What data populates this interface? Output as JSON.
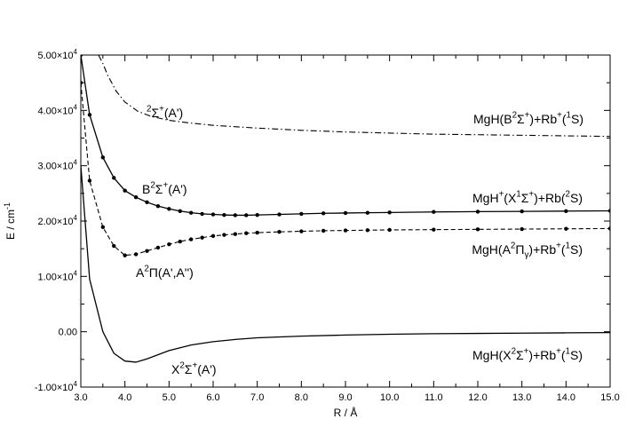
{
  "chart_data": {
    "type": "line",
    "xlabel": "R / Å",
    "ylabel": "E / cm",
    "ylabel_sup": "-1",
    "xlim": [
      3.0,
      15.0
    ],
    "ylim": [
      -10000,
      50000
    ],
    "x_ticks": [
      3.0,
      4.0,
      5.0,
      6.0,
      7.0,
      8.0,
      9.0,
      10.0,
      11.0,
      12.0,
      13.0,
      14.0,
      15.0
    ],
    "x_tick_labels": [
      "3.0",
      "4.0",
      "5.0",
      "6.0",
      "7.0",
      "8.0",
      "9.0",
      "10.0",
      "11.0",
      "12.0",
      "13.0",
      "14.0",
      "15.0"
    ],
    "y_ticks": [
      -10000,
      0,
      10000,
      20000,
      30000,
      40000,
      50000
    ],
    "y_tick_labels": [
      {
        "base": "-1.00×10",
        "exp": "4"
      },
      {
        "base": "0.00",
        "exp": ""
      },
      {
        "base": "1.00×10",
        "exp": "4"
      },
      {
        "base": "2.00×10",
        "exp": "4"
      },
      {
        "base": "3.00×10",
        "exp": "4"
      },
      {
        "base": "4.00×10",
        "exp": "4"
      },
      {
        "base": "5.00×10",
        "exp": "4"
      }
    ],
    "grid": false,
    "legend": "none",
    "series": [
      {
        "style": "dashdot",
        "markers": false,
        "x": [
          3.4,
          3.5,
          3.6,
          3.8,
          4.0,
          4.3,
          4.6,
          5.0,
          5.5,
          6.0,
          7.0,
          8.0,
          9.0,
          10.0,
          11.0,
          12.0,
          13.0,
          14.0,
          15.0
        ],
        "y": [
          50000,
          48500,
          46500,
          43500,
          41500,
          39800,
          38900,
          38200,
          37700,
          37300,
          36800,
          36400,
          36100,
          35900,
          35700,
          35600,
          35500,
          35400,
          35300
        ]
      },
      {
        "style": "solid",
        "markers": true,
        "x": [
          3.0,
          3.2,
          3.5,
          3.75,
          4.0,
          4.25,
          4.5,
          4.75,
          5.0,
          5.25,
          5.5,
          5.75,
          6.0,
          6.25,
          6.5,
          6.75,
          7.0,
          7.5,
          8.0,
          8.5,
          9.0,
          9.5,
          10.0,
          11.0,
          12.0,
          13.0,
          14.0,
          15.0
        ],
        "y": [
          50000,
          39200,
          31500,
          27800,
          25500,
          24300,
          23400,
          22700,
          22200,
          21800,
          21500,
          21300,
          21200,
          21100,
          21050,
          21050,
          21100,
          21200,
          21300,
          21400,
          21450,
          21500,
          21550,
          21650,
          21700,
          21750,
          21800,
          21850
        ]
      },
      {
        "style": "dashed",
        "markers": true,
        "x": [
          3.0,
          3.2,
          3.5,
          3.75,
          4.0,
          4.25,
          4.5,
          4.75,
          5.0,
          5.25,
          5.5,
          5.75,
          6.0,
          6.25,
          6.5,
          6.75,
          7.0,
          7.5,
          8.0,
          8.5,
          9.0,
          9.5,
          10.0,
          11.0,
          12.0,
          13.0,
          14.0,
          15.0
        ],
        "y": [
          45000,
          27300,
          18900,
          15500,
          13800,
          14000,
          14600,
          15200,
          15800,
          16300,
          16700,
          17000,
          17300,
          17500,
          17650,
          17800,
          17900,
          18050,
          18150,
          18250,
          18300,
          18350,
          18400,
          18450,
          18500,
          18550,
          18600,
          18650
        ]
      },
      {
        "style": "solid",
        "markers": false,
        "x": [
          3.0,
          3.2,
          3.5,
          3.75,
          4.0,
          4.25,
          4.5,
          5.0,
          5.5,
          6.0,
          6.5,
          7.0,
          8.0,
          9.0,
          10.0,
          11.0,
          12.0,
          13.0,
          14.0,
          15.0
        ],
        "y": [
          30000,
          9500,
          0,
          -3900,
          -5300,
          -5500,
          -4900,
          -3400,
          -2400,
          -1800,
          -1400,
          -1100,
          -800,
          -600,
          -450,
          -350,
          -300,
          -250,
          -200,
          -150
        ]
      }
    ],
    "curve_labels": [
      {
        "text_parts": [
          {
            "t": "2",
            "s": "sup"
          },
          {
            "t": "Σ",
            "s": ""
          },
          {
            "t": "+",
            "s": "sup"
          },
          {
            "t": "(A')",
            "s": ""
          }
        ]
      },
      {
        "text_parts": [
          {
            "t": "B",
            "s": ""
          },
          {
            "t": "2",
            "s": "sup"
          },
          {
            "t": "Σ",
            "s": ""
          },
          {
            "t": "+",
            "s": "sup"
          },
          {
            "t": "(A')",
            "s": ""
          }
        ]
      },
      {
        "text_parts": [
          {
            "t": "A",
            "s": ""
          },
          {
            "t": "2",
            "s": "sup"
          },
          {
            "t": "Π(A',A'')",
            "s": ""
          }
        ]
      },
      {
        "text_parts": [
          {
            "t": "X",
            "s": ""
          },
          {
            "t": "2",
            "s": "sup"
          },
          {
            "t": "Σ",
            "s": ""
          },
          {
            "t": "+",
            "s": "sup"
          },
          {
            "t": "(A')",
            "s": ""
          }
        ]
      }
    ],
    "asymptote_labels": [
      {
        "text_parts": [
          {
            "t": "MgH(B",
            "s": ""
          },
          {
            "t": "2",
            "s": "sup"
          },
          {
            "t": "Σ",
            "s": ""
          },
          {
            "t": "+",
            "s": "sup"
          },
          {
            "t": ")+Rb",
            "s": ""
          },
          {
            "t": "+",
            "s": "sup"
          },
          {
            "t": "(",
            "s": ""
          },
          {
            "t": "1",
            "s": "sup"
          },
          {
            "t": "S)",
            "s": ""
          }
        ]
      },
      {
        "text_parts": [
          {
            "t": "MgH",
            "s": ""
          },
          {
            "t": "+",
            "s": "sup"
          },
          {
            "t": "(X",
            "s": ""
          },
          {
            "t": "1",
            "s": "sup"
          },
          {
            "t": "Σ",
            "s": ""
          },
          {
            "t": "+",
            "s": "sup"
          },
          {
            "t": ")+Rb(",
            "s": ""
          },
          {
            "t": "2",
            "s": "sup"
          },
          {
            "t": "S)",
            "s": ""
          }
        ]
      },
      {
        "text_parts": [
          {
            "t": "MgH(A",
            "s": ""
          },
          {
            "t": "2",
            "s": "sup"
          },
          {
            "t": "Π",
            "s": ""
          },
          {
            "t": "γ",
            "s": "sub"
          },
          {
            "t": ")+Rb",
            "s": ""
          },
          {
            "t": "+",
            "s": "sup"
          },
          {
            "t": "(",
            "s": ""
          },
          {
            "t": "1",
            "s": "sup"
          },
          {
            "t": "S)",
            "s": ""
          }
        ]
      },
      {
        "text_parts": [
          {
            "t": "MgH(X",
            "s": ""
          },
          {
            "t": "2",
            "s": "sup"
          },
          {
            "t": "Σ",
            "s": ""
          },
          {
            "t": "+",
            "s": "sup"
          },
          {
            "t": ")+Rb",
            "s": ""
          },
          {
            "t": "+",
            "s": "sup"
          },
          {
            "t": "(",
            "s": ""
          },
          {
            "t": "1",
            "s": "sup"
          },
          {
            "t": "S)",
            "s": ""
          }
        ]
      }
    ],
    "colors": {
      "line": "#000000",
      "background": "#ffffff"
    }
  }
}
